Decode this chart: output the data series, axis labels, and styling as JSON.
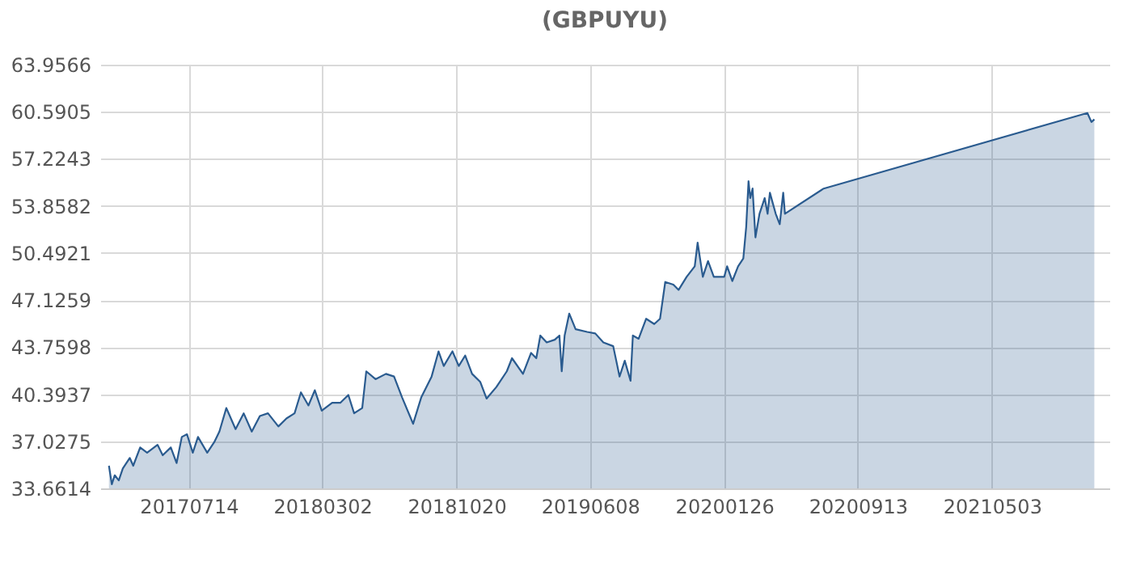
{
  "chart_data": {
    "type": "area",
    "title": "(GBPUYU)",
    "x": [
      "2017-02-26",
      "2017-03-03",
      "2017-03-08",
      "2017-03-15",
      "2017-03-22",
      "2017-04-03",
      "2017-04-09",
      "2017-04-21",
      "2017-05-03",
      "2017-05-21",
      "2017-05-30",
      "2017-06-13",
      "2017-06-23",
      "2017-07-02",
      "2017-07-11",
      "2017-07-21",
      "2017-07-30",
      "2017-08-15",
      "2017-08-27",
      "2017-09-05",
      "2017-09-17",
      "2017-10-03",
      "2017-10-17",
      "2017-10-31",
      "2017-11-14",
      "2017-11-28",
      "2017-12-16",
      "2017-12-30",
      "2018-01-13",
      "2018-01-24",
      "2018-02-06",
      "2018-02-17",
      "2018-03-01",
      "2018-03-19",
      "2018-04-02",
      "2018-04-16",
      "2018-04-26",
      "2018-05-10",
      "2018-05-17",
      "2018-06-02",
      "2018-06-20",
      "2018-07-04",
      "2018-07-18",
      "2018-08-06",
      "2018-08-20",
      "2018-09-07",
      "2018-09-19",
      "2018-09-28",
      "2018-10-13",
      "2018-10-24",
      "2018-11-04",
      "2018-11-16",
      "2018-11-30",
      "2018-12-11",
      "2018-12-28",
      "2019-01-15",
      "2019-01-24",
      "2019-02-12",
      "2019-02-26",
      "2019-03-07",
      "2019-03-14",
      "2019-03-25",
      "2019-04-08",
      "2019-04-16",
      "2019-04-20",
      "2019-04-25",
      "2019-05-03",
      "2019-05-14",
      "2019-06-03",
      "2019-06-17",
      "2019-07-01",
      "2019-07-18",
      "2019-07-29",
      "2019-08-07",
      "2019-08-17",
      "2019-08-21",
      "2019-08-31",
      "2019-09-13",
      "2019-09-27",
      "2019-10-07",
      "2019-10-16",
      "2019-10-30",
      "2019-11-08",
      "2019-11-22",
      "2019-12-06",
      "2019-12-11",
      "2019-12-20",
      "2019-12-29",
      "2020-01-08",
      "2020-01-26",
      "2020-01-31",
      "2020-02-09",
      "2020-02-19",
      "2020-02-28",
      "2020-03-04",
      "2020-03-08",
      "2020-03-11",
      "2020-03-15",
      "2020-03-20",
      "2020-03-27",
      "2020-04-05",
      "2020-04-10",
      "2020-04-14",
      "2020-04-24",
      "2020-05-01",
      "2020-05-07",
      "2020-05-10",
      "2020-07-16",
      "2021-10-15",
      "2021-10-22",
      "2021-10-27"
    ],
    "series": [
      {
        "color": "#2a5b8f",
        "values": [
          35.28,
          33.96,
          34.6,
          34.23,
          35.09,
          35.84,
          35.28,
          36.59,
          36.21,
          36.78,
          36.03,
          36.59,
          35.47,
          37.34,
          37.53,
          36.21,
          37.34,
          36.21,
          36.96,
          37.72,
          39.41,
          37.9,
          39.03,
          37.72,
          38.84,
          39.03,
          38.09,
          38.66,
          39.03,
          40.53,
          39.59,
          40.68,
          39.22,
          39.78,
          39.78,
          40.34,
          39.03,
          39.41,
          42.03,
          41.47,
          41.85,
          41.66,
          40.16,
          38.28,
          40.16,
          41.66,
          43.46,
          42.41,
          43.46,
          42.41,
          43.16,
          41.85,
          41.28,
          40.08,
          40.91,
          42.03,
          42.97,
          41.85,
          43.35,
          42.97,
          44.59,
          44.1,
          44.29,
          44.59,
          42.03,
          44.59,
          46.16,
          45.04,
          44.85,
          44.74,
          44.1,
          43.83,
          41.66,
          42.79,
          41.36,
          44.59,
          44.36,
          45.79,
          45.41,
          45.79,
          48.42,
          48.23,
          47.85,
          48.79,
          49.54,
          51.23,
          48.79,
          49.92,
          48.79,
          48.79,
          49.54,
          48.49,
          49.54,
          50.1,
          52.36,
          55.62,
          54.42,
          55.1,
          51.61,
          53.3,
          54.42,
          53.3,
          54.8,
          53.3,
          52.55,
          54.8,
          53.3,
          55.1,
          60.5,
          59.86,
          60.05
        ]
      }
    ],
    "xlim": [
      "2017-02-11",
      "2021-11-22"
    ],
    "xticks": [
      {
        "value": "2017-07-14",
        "label": "20170714"
      },
      {
        "value": "2018-03-02",
        "label": "20180302"
      },
      {
        "value": "2018-10-20",
        "label": "20181020"
      },
      {
        "value": "2019-06-08",
        "label": "20190608"
      },
      {
        "value": "2020-01-26",
        "label": "20200126"
      },
      {
        "value": "2020-09-13",
        "label": "20200913"
      },
      {
        "value": "2021-05-03",
        "label": "20210503"
      }
    ],
    "ylim": [
      33.6614,
      63.9566
    ],
    "yticks": [
      33.6614,
      37.0275,
      40.3937,
      43.7598,
      47.1259,
      50.4921,
      53.8582,
      57.2243,
      60.5905,
      63.9566
    ],
    "grid": true
  }
}
